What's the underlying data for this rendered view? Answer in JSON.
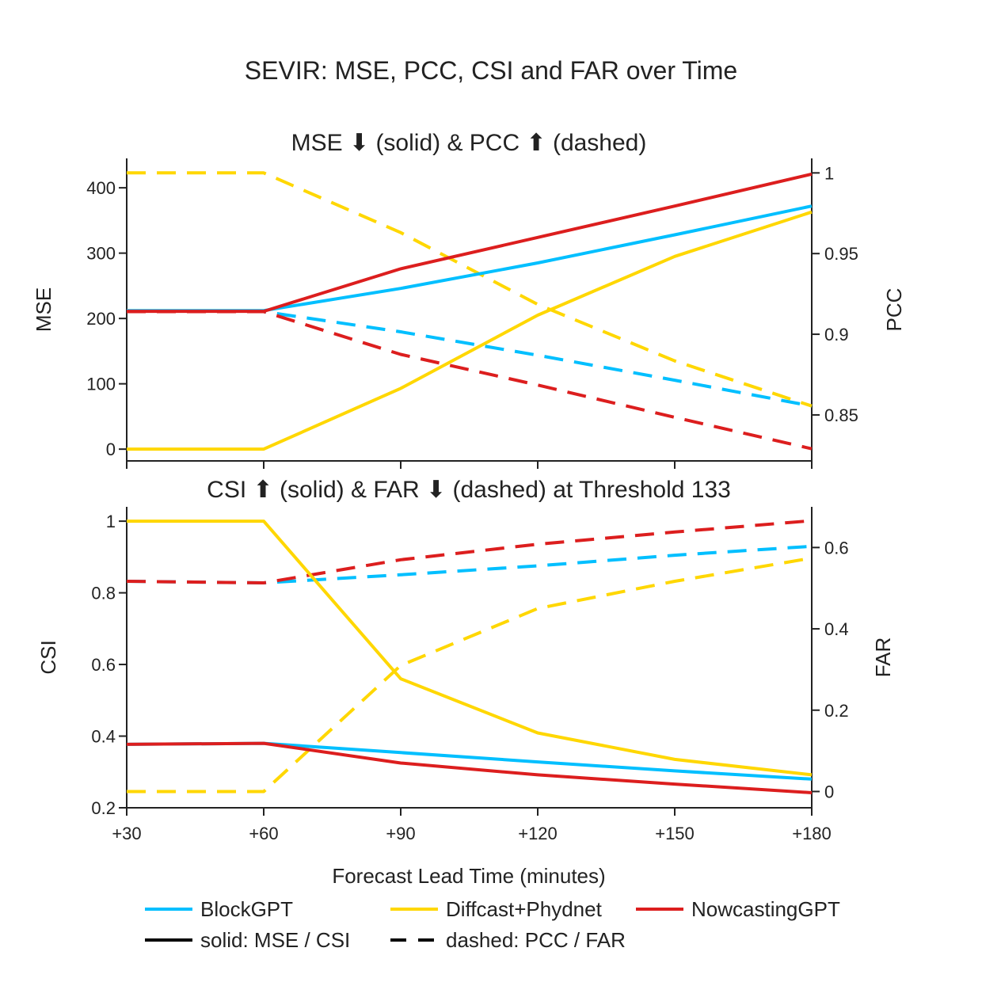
{
  "title": "SEVIR: MSE, PCC, CSI and FAR over Time",
  "colors": {
    "BlockGPT": "#00BFFF",
    "Diffcast+Phydnet": "#FFD700",
    "NowcastingGPT": "#DC1E1E",
    "axis": "#222222",
    "text": "#222222"
  },
  "x_axis": {
    "label": "Forecast Lead Time (minutes)",
    "tick_labels": [
      "+30",
      "+60",
      "+90",
      "+120",
      "+150",
      "+180"
    ]
  },
  "legend": {
    "series_entries": [
      "BlockGPT",
      "Diffcast+Phydnet",
      "NowcastingGPT"
    ],
    "style_entries": [
      {
        "style": "solid",
        "label": "solid: MSE / CSI"
      },
      {
        "style": "dashed",
        "label": "dashed: PCC / FAR"
      }
    ]
  },
  "chart_data": [
    {
      "type": "line",
      "title": "MSE ⬇ (solid) & PCC ⬆ (dashed)",
      "x": [
        30,
        60,
        90,
        120,
        150,
        180
      ],
      "left_axis": {
        "label": "MSE",
        "ylim": [
          -18,
          445
        ],
        "ticks": [
          0,
          100,
          200,
          300,
          400
        ],
        "tick_labels": [
          "0",
          "100",
          "200",
          "300",
          "400"
        ]
      },
      "right_axis": {
        "label": "PCC",
        "ylim": [
          0.8215,
          1.009
        ],
        "ticks": [
          0.85,
          0.9,
          0.95,
          1
        ],
        "tick_labels": [
          "0.85",
          "0.9",
          "0.95",
          "1"
        ]
      },
      "series": [
        {
          "name": "BlockGPT",
          "metric": "MSE",
          "axis": "left",
          "style": "solid",
          "values": [
            212,
            212,
            246,
            285,
            328,
            372
          ]
        },
        {
          "name": "Diffcast+Phydnet",
          "metric": "MSE",
          "axis": "left",
          "style": "solid",
          "values": [
            0,
            0,
            93,
            205,
            295,
            363
          ]
        },
        {
          "name": "NowcastingGPT",
          "metric": "MSE",
          "axis": "left",
          "style": "solid",
          "values": [
            211,
            211,
            276,
            324,
            372,
            421
          ]
        },
        {
          "name": "BlockGPT",
          "metric": "PCC",
          "axis": "right",
          "style": "dashed",
          "values": [
            0.914,
            0.914,
            0.9015,
            0.887,
            0.8715,
            0.8555
          ]
        },
        {
          "name": "Diffcast+Phydnet",
          "metric": "PCC",
          "axis": "right",
          "style": "dashed",
          "values": [
            1.0,
            1.0,
            0.963,
            0.9185,
            0.8835,
            0.8555
          ]
        },
        {
          "name": "NowcastingGPT",
          "metric": "PCC",
          "axis": "right",
          "style": "dashed",
          "values": [
            0.914,
            0.914,
            0.8875,
            0.8685,
            0.8485,
            0.829
          ]
        }
      ]
    },
    {
      "type": "line",
      "title": "CSI ⬆ (solid) & FAR ⬇ (dashed) at Threshold 133",
      "x": [
        30,
        60,
        90,
        120,
        150,
        180
      ],
      "left_axis": {
        "label": "CSI",
        "ylim": [
          0.2,
          1.04
        ],
        "ticks": [
          0.2,
          0.4,
          0.6,
          0.8,
          1
        ],
        "tick_labels": [
          "0.2",
          "0.4",
          "0.6",
          "0.8",
          "1"
        ]
      },
      "right_axis": {
        "label": "FAR",
        "ylim": [
          -0.04,
          0.7
        ],
        "ticks": [
          0,
          0.2,
          0.4,
          0.6
        ],
        "tick_labels": [
          "0",
          "0.2",
          "0.4",
          "0.6"
        ]
      },
      "series": [
        {
          "name": "BlockGPT",
          "metric": "CSI",
          "axis": "left",
          "style": "solid",
          "values": [
            0.377,
            0.38,
            0.354,
            0.328,
            0.303,
            0.28
          ]
        },
        {
          "name": "Diffcast+Phydnet",
          "metric": "CSI",
          "axis": "left",
          "style": "solid",
          "values": [
            1.0,
            1.0,
            0.56,
            0.409,
            0.335,
            0.292
          ]
        },
        {
          "name": "NowcastingGPT",
          "metric": "CSI",
          "axis": "left",
          "style": "solid",
          "values": [
            0.377,
            0.38,
            0.325,
            0.292,
            0.266,
            0.242
          ]
        },
        {
          "name": "BlockGPT",
          "metric": "FAR",
          "axis": "right",
          "style": "dashed",
          "values": [
            0.517,
            0.513,
            0.533,
            0.555,
            0.581,
            0.603
          ]
        },
        {
          "name": "Diffcast+Phydnet",
          "metric": "FAR",
          "axis": "right",
          "style": "dashed",
          "values": [
            0.0,
            0.0,
            0.31,
            0.45,
            0.517,
            0.574
          ]
        },
        {
          "name": "NowcastingGPT",
          "metric": "FAR",
          "axis": "right",
          "style": "dashed",
          "values": [
            0.517,
            0.513,
            0.57,
            0.608,
            0.638,
            0.666
          ]
        }
      ]
    }
  ]
}
